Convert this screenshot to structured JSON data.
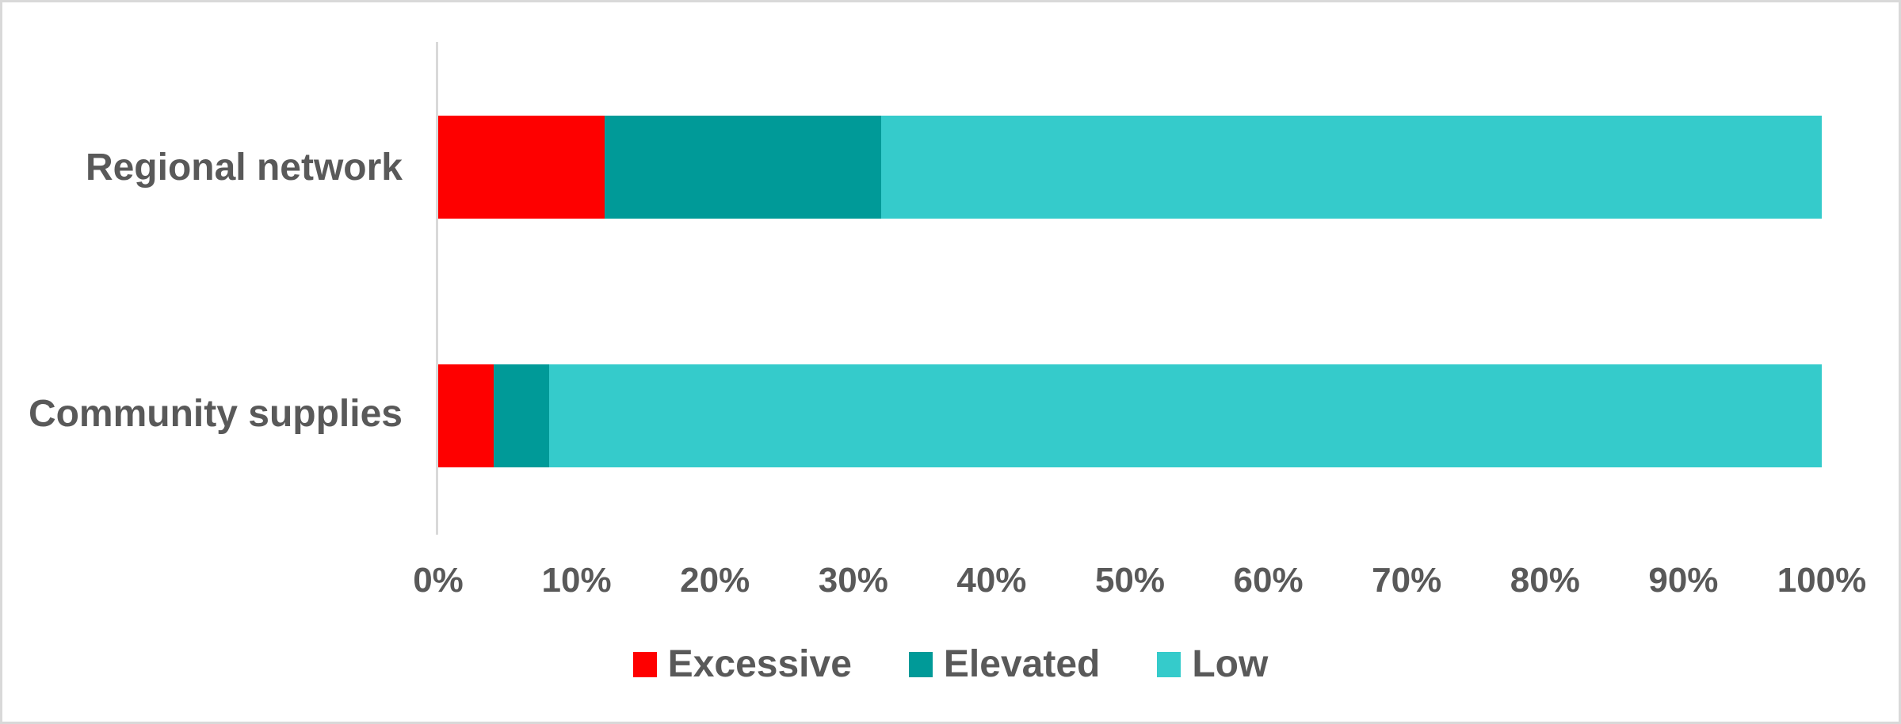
{
  "chart_data": {
    "type": "bar",
    "orientation": "horizontal",
    "stacked": true,
    "title": "",
    "xlabel": "",
    "ylabel": "",
    "xlim": [
      0,
      100
    ],
    "grid": false,
    "categories": [
      "Regional network",
      "Community supplies"
    ],
    "series": [
      {
        "name": "Excessive",
        "color": "#fe0000",
        "values": [
          12,
          4
        ]
      },
      {
        "name": "Elevated",
        "color": "#009a98",
        "values": [
          20,
          4
        ]
      },
      {
        "name": "Low",
        "color": "#35cbcb",
        "values": [
          68,
          92
        ]
      }
    ],
    "x_ticks": [
      "0%",
      "10%",
      "20%",
      "30%",
      "40%",
      "50%",
      "60%",
      "70%",
      "80%",
      "90%",
      "100%"
    ],
    "legend": {
      "position": "bottom",
      "entries": [
        "Excessive",
        "Elevated",
        "Low"
      ]
    }
  },
  "colors": {
    "text": "#595959",
    "axis_line": "#d9d9d9",
    "frame_border": "#d9d9d9",
    "background": "#ffffff"
  }
}
